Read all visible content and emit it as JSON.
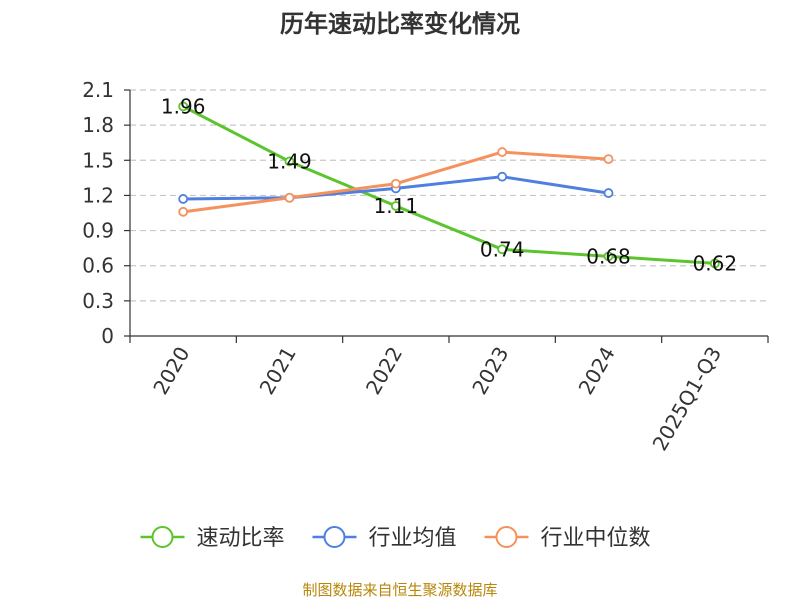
{
  "chart_data": {
    "type": "line",
    "title": "历年速动比率变化情况",
    "categories": [
      "2020",
      "2021",
      "2022",
      "2023",
      "2024",
      "2025Q1-Q3"
    ],
    "ylim": [
      0,
      2.1
    ],
    "yticks": [
      "0",
      "0.3",
      "0.6",
      "0.9",
      "1.2",
      "1.5",
      "1.8",
      "2.1"
    ],
    "grid": true,
    "legend_position": "bottom",
    "series": [
      {
        "name": "速动比率",
        "color": "#5cc42d",
        "values": [
          1.96,
          1.49,
          1.11,
          0.74,
          0.68,
          0.62
        ],
        "labels": [
          "1.96",
          "1.49",
          "1.11",
          "0.74",
          "0.68",
          "0.62"
        ]
      },
      {
        "name": "行业均值",
        "color": "#4f7fdf",
        "values": [
          1.17,
          1.18,
          1.26,
          1.36,
          1.22,
          null
        ]
      },
      {
        "name": "行业中位数",
        "color": "#f5915c",
        "values": [
          1.06,
          1.18,
          1.3,
          1.57,
          1.51,
          null
        ]
      }
    ],
    "source": "制图数据来自恒生聚源数据库"
  }
}
